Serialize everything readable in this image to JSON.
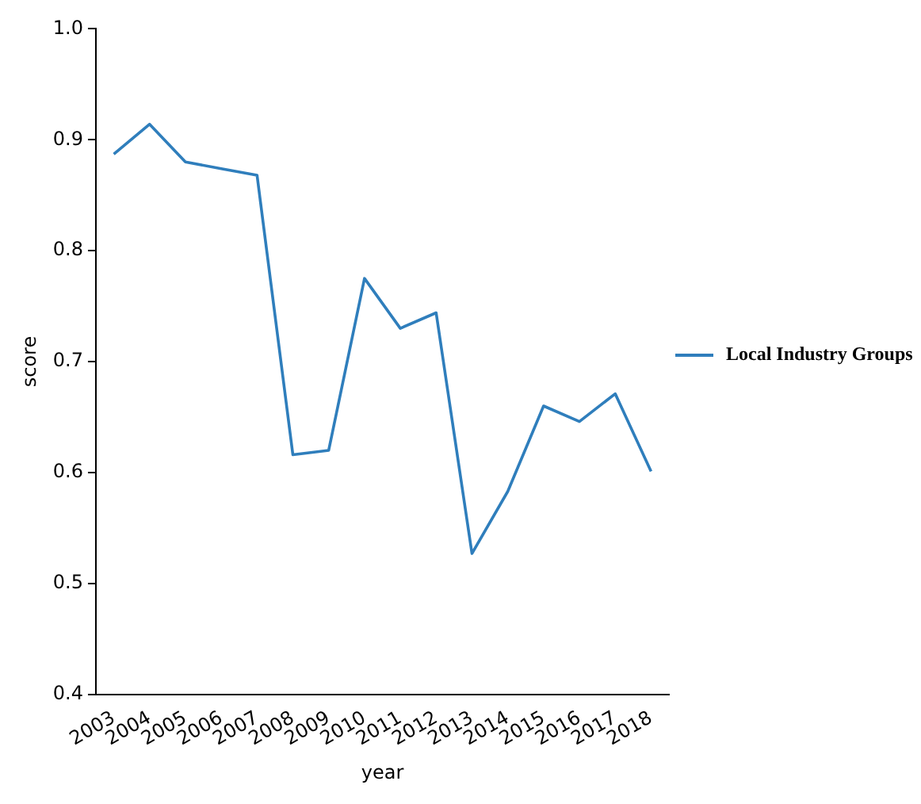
{
  "chart_data": {
    "type": "line",
    "xlabel": "year",
    "ylabel": "score",
    "categories": [
      "2003",
      "2004",
      "2005",
      "2006",
      "2007",
      "2008",
      "2009",
      "2010",
      "2011",
      "2012",
      "2013",
      "2014",
      "2015",
      "2016",
      "2017",
      "2018"
    ],
    "series": [
      {
        "name": "Local Industry Groups",
        "color": "#2f7ebc",
        "values": [
          0.887,
          0.914,
          0.88,
          0.874,
          0.868,
          0.616,
          0.62,
          0.775,
          0.73,
          0.744,
          0.527,
          0.583,
          0.66,
          0.646,
          0.671,
          0.601
        ]
      }
    ],
    "ylim": [
      0.4,
      1.0
    ],
    "yticks": [
      {
        "value": 0.4,
        "label": "0.4"
      },
      {
        "value": 0.5,
        "label": "0.5"
      },
      {
        "value": 0.6,
        "label": "0.6"
      },
      {
        "value": 0.7,
        "label": "0.7"
      },
      {
        "value": 0.8,
        "label": "0.8"
      },
      {
        "value": 0.9,
        "label": "0.9"
      },
      {
        "value": 1.0,
        "label": "1.0"
      }
    ],
    "grid": false,
    "legend": "right",
    "marker": "none",
    "line_style": "solid"
  }
}
